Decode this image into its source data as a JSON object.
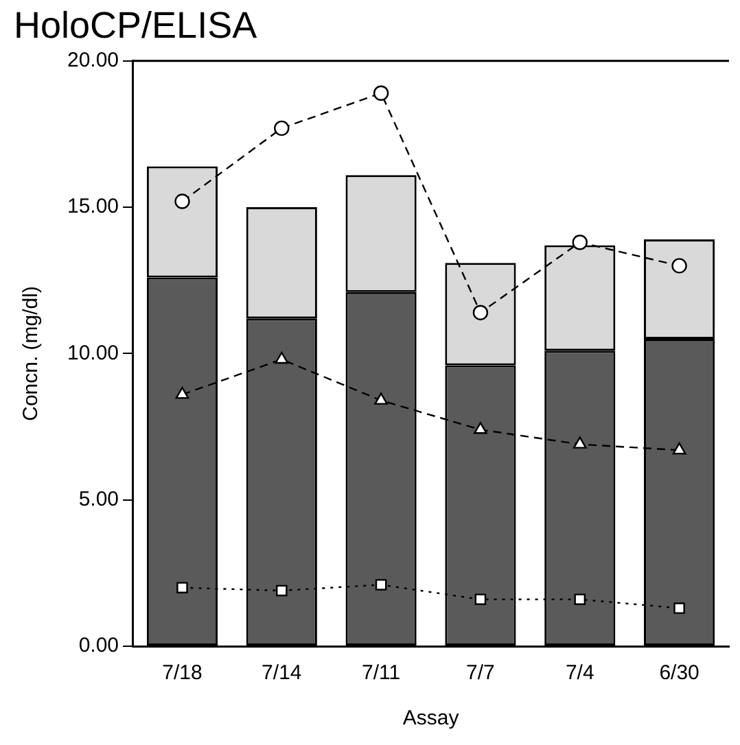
{
  "chart_data": {
    "type": "bar",
    "title": "HoloCP/ELISA",
    "xlabel": "Assay",
    "ylabel": "Concn. (mg/dl)",
    "stacked": true,
    "grid": false,
    "legend": false,
    "categories": [
      "7/18",
      "7/14",
      "7/11",
      "7/7",
      "7/4",
      "6/30"
    ],
    "ylim": [
      0,
      20
    ],
    "yticks": [
      {
        "value": 0,
        "label": "0.00"
      },
      {
        "value": 5,
        "label": "5.00"
      },
      {
        "value": 10,
        "label": "10.00"
      },
      {
        "value": 15,
        "label": "15.00"
      },
      {
        "value": 20,
        "label": "20.00"
      }
    ],
    "series": [
      {
        "color": "#5a5a5a",
        "values": [
          12.6,
          11.2,
          12.1,
          9.6,
          10.1,
          10.5
        ]
      },
      {
        "color": "#d9d9d9",
        "values": [
          3.8,
          3.8,
          4.0,
          3.5,
          3.6,
          3.4
        ]
      },
      {
        "type": "line",
        "color": "#000000",
        "marker": "circle",
        "line_style": "dashed",
        "values": [
          15.2,
          17.7,
          18.9,
          11.4,
          13.8,
          13.0
        ]
      },
      {
        "type": "line",
        "color": "#000000",
        "marker": "triangle",
        "line_style": "dashed",
        "values": [
          8.6,
          9.8,
          8.4,
          7.4,
          6.9,
          6.7
        ]
      },
      {
        "type": "line",
        "color": "#000000",
        "marker": "square",
        "line_style": "dotted",
        "values": [
          2.0,
          1.9,
          2.1,
          1.6,
          1.6,
          1.3
        ]
      }
    ]
  }
}
